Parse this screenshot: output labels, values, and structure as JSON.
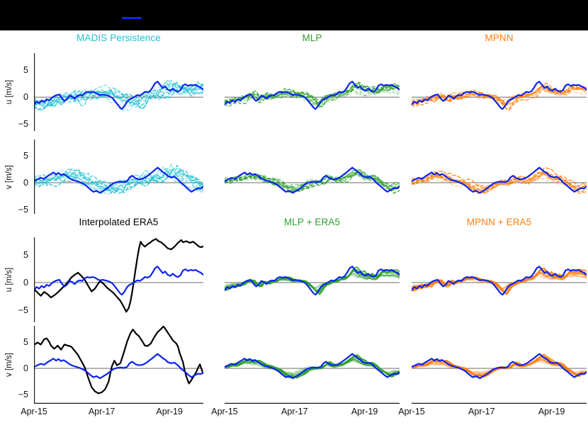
{
  "header": {
    "bar_color": "#000000"
  },
  "legend": {
    "line_color": "#0b24ef"
  },
  "chart_data": {
    "type": "line",
    "grid": false,
    "description_titles": [
      "MADIS Persistence",
      "MLP",
      "MPNN",
      "Interpolated ERA5",
      "MLP + ERA5",
      "MPNN + ERA5"
    ],
    "x_ticks": {
      "labels": [
        "Apr-15",
        "Apr-17",
        "Apr-19"
      ],
      "fractions": [
        0,
        0.4,
        0.8
      ]
    },
    "y_ticks": [
      5,
      0,
      -5
    ],
    "y_tick_labels": [
      "5",
      "0",
      "−5"
    ],
    "rows": [
      {
        "ylabel": "u [m/s]",
        "ylim": [
          -6.3,
          8.2
        ]
      },
      {
        "ylabel": "v [m/s]",
        "ylim": [
          -5.8,
          8.0
        ]
      },
      {
        "ylabel": "u [m/s]",
        "ylim": [
          -7.2,
          8.2
        ]
      },
      {
        "ylabel": "v [m/s]",
        "ylim": [
          -6.8,
          8.2
        ]
      }
    ],
    "colors": {
      "observation": "#0b24ef",
      "era5": "#000000",
      "persistence": "#17becf",
      "mlp": "#2ca02c",
      "mpnn": "#ff7f0e",
      "zero_line": "#7d7d7d",
      "spine": "#1a1a1a",
      "title_persistence": "#22bfd3",
      "title_mlp": "#2ca02c",
      "title_mpnn": "#ff7f0e",
      "title_era5": "#000000"
    },
    "titles": [
      {
        "text": "MADIS Persistence",
        "color": "title_persistence",
        "block": 0,
        "col": 0
      },
      {
        "text": "MLP",
        "color": "title_mlp",
        "block": 0,
        "col": 1
      },
      {
        "text": "MPNN",
        "color": "title_mpnn",
        "block": 0,
        "col": 2
      },
      {
        "text": "Interpolated ERA5",
        "color": "title_era5",
        "block": 1,
        "col": 0
      },
      {
        "text": "MLP + ERA5",
        "color": "title_mlp",
        "block": 1,
        "col": 1
      },
      {
        "text": "MPNN + ERA5",
        "color": "title_mpnn",
        "block": 1,
        "col": 2
      }
    ],
    "series": {
      "obs_u": [
        [
          0,
          -1.4
        ],
        [
          0.015,
          -0.8
        ],
        [
          0.03,
          -1.1
        ],
        [
          0.045,
          -0.6
        ],
        [
          0.06,
          -0.9
        ],
        [
          0.075,
          -0.4
        ],
        [
          0.09,
          -0.6
        ],
        [
          0.105,
          -0.1
        ],
        [
          0.12,
          0.2
        ],
        [
          0.135,
          0.4
        ],
        [
          0.15,
          0.5
        ],
        [
          0.165,
          -0.2
        ],
        [
          0.18,
          -0.7
        ],
        [
          0.195,
          -0.4
        ],
        [
          0.21,
          0.3
        ],
        [
          0.225,
          0.1
        ],
        [
          0.24,
          -0.3
        ],
        [
          0.255,
          0.2
        ],
        [
          0.27,
          0.4
        ],
        [
          0.285,
          0.3
        ],
        [
          0.3,
          0.8
        ],
        [
          0.315,
          1
        ],
        [
          0.33,
          0.9
        ],
        [
          0.345,
          1
        ],
        [
          0.36,
          0.9
        ],
        [
          0.375,
          0.6
        ],
        [
          0.39,
          0.4
        ],
        [
          0.405,
          0.5
        ],
        [
          0.42,
          0.4
        ],
        [
          0.435,
          0.3
        ],
        [
          0.45,
          0.1
        ],
        [
          0.465,
          -0.2
        ],
        [
          0.48,
          -0.8
        ],
        [
          0.495,
          -1.4
        ],
        [
          0.51,
          -2
        ],
        [
          0.52,
          -2.2
        ],
        [
          0.535,
          -1.6
        ],
        [
          0.55,
          -0.8
        ],
        [
          0.565,
          -0.4
        ],
        [
          0.58,
          -0.2
        ],
        [
          0.595,
          0.1
        ],
        [
          0.61,
          0.4
        ],
        [
          0.625,
          0.3
        ],
        [
          0.64,
          0.6
        ],
        [
          0.655,
          1
        ],
        [
          0.67,
          0.9
        ],
        [
          0.685,
          1.1
        ],
        [
          0.7,
          1.8
        ],
        [
          0.715,
          2.6
        ],
        [
          0.73,
          2.9
        ],
        [
          0.745,
          2.3
        ],
        [
          0.76,
          1.7
        ],
        [
          0.775,
          2
        ],
        [
          0.79,
          1.4
        ],
        [
          0.805,
          1.2
        ],
        [
          0.82,
          1.6
        ],
        [
          0.835,
          1.2
        ],
        [
          0.85,
          1
        ],
        [
          0.865,
          1.3
        ],
        [
          0.88,
          2.2
        ],
        [
          0.895,
          2.4
        ],
        [
          0.91,
          2.1
        ],
        [
          0.925,
          2.3
        ],
        [
          0.94,
          2.2
        ],
        [
          0.955,
          2.3
        ],
        [
          0.97,
          2
        ],
        [
          0.985,
          1.8
        ],
        [
          1,
          1.4
        ]
      ],
      "obs_v": [
        [
          0,
          0.3
        ],
        [
          0.02,
          0.6
        ],
        [
          0.04,
          0.9
        ],
        [
          0.06,
          0.7
        ],
        [
          0.08,
          1.2
        ],
        [
          0.1,
          1.6
        ],
        [
          0.115,
          1.9
        ],
        [
          0.13,
          1.5
        ],
        [
          0.145,
          1.8
        ],
        [
          0.16,
          1.4
        ],
        [
          0.175,
          1.6
        ],
        [
          0.19,
          1.3
        ],
        [
          0.21,
          0.8
        ],
        [
          0.23,
          0.5
        ],
        [
          0.25,
          0.3
        ],
        [
          0.27,
          0.1
        ],
        [
          0.29,
          -0.2
        ],
        [
          0.31,
          -0.6
        ],
        [
          0.33,
          -1.2
        ],
        [
          0.35,
          -1.7
        ],
        [
          0.37,
          -1.5
        ],
        [
          0.39,
          -1.9
        ],
        [
          0.41,
          -1.5
        ],
        [
          0.43,
          -1.1
        ],
        [
          0.45,
          -0.6
        ],
        [
          0.47,
          -0.1
        ],
        [
          0.49,
          0.1
        ],
        [
          0.51,
          0.2
        ],
        [
          0.53,
          0.1
        ],
        [
          0.55,
          0.3
        ],
        [
          0.565,
          1
        ],
        [
          0.58,
          1.3
        ],
        [
          0.6,
          0.8
        ],
        [
          0.62,
          0.6
        ],
        [
          0.64,
          0.7
        ],
        [
          0.66,
          1
        ],
        [
          0.68,
          1.5
        ],
        [
          0.7,
          2
        ],
        [
          0.715,
          2.4
        ],
        [
          0.73,
          2.8
        ],
        [
          0.745,
          2.4
        ],
        [
          0.76,
          2
        ],
        [
          0.775,
          1.7
        ],
        [
          0.79,
          1.2
        ],
        [
          0.81,
          1
        ],
        [
          0.83,
          1.1
        ],
        [
          0.85,
          0.6
        ],
        [
          0.87,
          -0.1
        ],
        [
          0.89,
          -0.6
        ],
        [
          0.91,
          -1.2
        ],
        [
          0.93,
          -1.7
        ],
        [
          0.95,
          -1.3
        ],
        [
          0.97,
          -1
        ],
        [
          0.985,
          -1.1
        ],
        [
          1,
          -0.7
        ]
      ],
      "era5_u": [
        [
          0,
          -1.2
        ],
        [
          0.02,
          -1.8
        ],
        [
          0.04,
          -2.4
        ],
        [
          0.06,
          -1.7
        ],
        [
          0.08,
          -2.1
        ],
        [
          0.1,
          -2.7
        ],
        [
          0.12,
          -2.3
        ],
        [
          0.14,
          -1.8
        ],
        [
          0.16,
          -1.2
        ],
        [
          0.18,
          -0.6
        ],
        [
          0.2,
          0.1
        ],
        [
          0.22,
          0.9
        ],
        [
          0.24,
          1.4
        ],
        [
          0.26,
          1.8
        ],
        [
          0.28,
          1.2
        ],
        [
          0.3,
          0.5
        ],
        [
          0.32,
          -0.6
        ],
        [
          0.34,
          -1.6
        ],
        [
          0.36,
          -1.1
        ],
        [
          0.375,
          -0.4
        ],
        [
          0.39,
          0.3
        ],
        [
          0.41,
          -0.2
        ],
        [
          0.43,
          -0.9
        ],
        [
          0.45,
          -1.4
        ],
        [
          0.47,
          -1.9
        ],
        [
          0.49,
          -2.6
        ],
        [
          0.51,
          -3.3
        ],
        [
          0.53,
          -4.4
        ],
        [
          0.545,
          -5.3
        ],
        [
          0.56,
          -4.6
        ],
        [
          0.57,
          -3.4
        ],
        [
          0.58,
          -1.7
        ],
        [
          0.59,
          0.3
        ],
        [
          0.6,
          2.4
        ],
        [
          0.61,
          4.4
        ],
        [
          0.62,
          6.2
        ],
        [
          0.63,
          7.4
        ],
        [
          0.64,
          6.9
        ],
        [
          0.655,
          6.5
        ],
        [
          0.67,
          6.9
        ],
        [
          0.685,
          7.2
        ],
        [
          0.7,
          7.6
        ],
        [
          0.72,
          7.9
        ],
        [
          0.735,
          7.5
        ],
        [
          0.75,
          7.3
        ],
        [
          0.77,
          6.8
        ],
        [
          0.79,
          6.2
        ],
        [
          0.81,
          6
        ],
        [
          0.83,
          6.5
        ],
        [
          0.85,
          7.2
        ],
        [
          0.87,
          7.7
        ],
        [
          0.88,
          7.3
        ],
        [
          0.9,
          7.5
        ],
        [
          0.92,
          7.2
        ],
        [
          0.94,
          7.4
        ],
        [
          0.96,
          6.9
        ],
        [
          0.975,
          6.5
        ],
        [
          0.99,
          6.4
        ],
        [
          1,
          6.6
        ]
      ],
      "era5_v": [
        [
          0,
          4.5
        ],
        [
          0.02,
          5
        ],
        [
          0.04,
          4.6
        ],
        [
          0.06,
          5.6
        ],
        [
          0.075,
          5.8
        ],
        [
          0.09,
          5.1
        ],
        [
          0.1,
          4.4
        ],
        [
          0.12,
          3.8
        ],
        [
          0.14,
          4.4
        ],
        [
          0.16,
          3.6
        ],
        [
          0.18,
          4.6
        ],
        [
          0.2,
          4.4
        ],
        [
          0.22,
          4.2
        ],
        [
          0.24,
          3.4
        ],
        [
          0.26,
          2.6
        ],
        [
          0.28,
          1.4
        ],
        [
          0.3,
          0.2
        ],
        [
          0.32,
          -1.8
        ],
        [
          0.34,
          -3.6
        ],
        [
          0.36,
          -4.4
        ],
        [
          0.38,
          -4.8
        ],
        [
          0.4,
          -4.6
        ],
        [
          0.42,
          -4
        ],
        [
          0.44,
          -2.6
        ],
        [
          0.46,
          0.4
        ],
        [
          0.475,
          1.5
        ],
        [
          0.49,
          0.6
        ],
        [
          0.51,
          1
        ],
        [
          0.53,
          3
        ],
        [
          0.55,
          5.2
        ],
        [
          0.57,
          6.8
        ],
        [
          0.585,
          7.5
        ],
        [
          0.6,
          6.8
        ],
        [
          0.62,
          6.2
        ],
        [
          0.64,
          5.2
        ],
        [
          0.655,
          4.4
        ],
        [
          0.67,
          4.3
        ],
        [
          0.69,
          4.8
        ],
        [
          0.71,
          6
        ],
        [
          0.73,
          7
        ],
        [
          0.75,
          7.6
        ],
        [
          0.765,
          8.1
        ],
        [
          0.78,
          7.4
        ],
        [
          0.8,
          6.4
        ],
        [
          0.82,
          5.4
        ],
        [
          0.84,
          4.8
        ],
        [
          0.85,
          4.2
        ],
        [
          0.86,
          3
        ],
        [
          0.88,
          1.2
        ],
        [
          0.89,
          -0.4
        ],
        [
          0.9,
          -1.6
        ],
        [
          0.915,
          -2.9
        ],
        [
          0.93,
          -2.2
        ],
        [
          0.945,
          -1.4
        ],
        [
          0.96,
          -0.6
        ],
        [
          0.97,
          0.2
        ],
        [
          0.98,
          0.8
        ],
        [
          0.99,
          -0.2
        ],
        [
          1,
          -1
        ]
      ]
    },
    "panels": [
      {
        "id": "persistence-u",
        "row": 0,
        "col": 0,
        "obs": "obs_u",
        "members": {
          "base": "obs_u",
          "count": 10,
          "color": "persistence",
          "dashed": true,
          "damp": 0.8,
          "dampStep": 0.01,
          "lag": 0.02,
          "lagStep": 0.012,
          "walk": 1.6,
          "decay": 0.75,
          "alpha": [
            0.3,
            0.8
          ],
          "seed": 7
        }
      },
      {
        "id": "mlp-u",
        "row": 0,
        "col": 1,
        "obs": "obs_u",
        "members": {
          "base": "obs_u",
          "count": 9,
          "color": "mlp",
          "dashed": true,
          "damp": 0.55,
          "dampStep": 0.04,
          "lag": 0.004,
          "lagStep": 0.004,
          "walk": 0.9,
          "decay": 0.75,
          "alpha": [
            0.35,
            0.85
          ],
          "seed": 8
        }
      },
      {
        "id": "mpnn-u",
        "row": 0,
        "col": 2,
        "obs": "obs_u",
        "members": {
          "base": "obs_u",
          "count": 9,
          "color": "mpnn",
          "dashed": true,
          "damp": 0.55,
          "dampStep": 0.04,
          "lag": 0.004,
          "lagStep": 0.004,
          "walk": 0.9,
          "decay": 0.75,
          "alpha": [
            0.35,
            0.85
          ],
          "seed": 9
        }
      },
      {
        "id": "persistence-v",
        "row": 1,
        "col": 0,
        "obs": "obs_v",
        "members": {
          "base": "obs_v",
          "count": 10,
          "color": "persistence",
          "dashed": true,
          "damp": 0.8,
          "dampStep": 0.01,
          "lag": 0.02,
          "lagStep": 0.012,
          "walk": 1.6,
          "decay": 0.75,
          "alpha": [
            0.3,
            0.8
          ],
          "seed": 17
        }
      },
      {
        "id": "mlp-v",
        "row": 1,
        "col": 1,
        "obs": "obs_v",
        "members": {
          "base": "obs_v",
          "count": 9,
          "color": "mlp",
          "dashed": true,
          "damp": 0.55,
          "dampStep": 0.04,
          "lag": 0.004,
          "lagStep": 0.004,
          "walk": 0.9,
          "decay": 0.75,
          "alpha": [
            0.35,
            0.85
          ],
          "seed": 18
        }
      },
      {
        "id": "mpnn-v",
        "row": 1,
        "col": 2,
        "obs": "obs_v",
        "members": {
          "base": "obs_v",
          "count": 9,
          "color": "mpnn",
          "dashed": true,
          "damp": 0.55,
          "dampStep": 0.04,
          "lag": 0.004,
          "lagStep": 0.004,
          "walk": 0.9,
          "decay": 0.75,
          "alpha": [
            0.35,
            0.85
          ],
          "seed": 19
        }
      },
      {
        "id": "era5-u",
        "row": 2,
        "col": 0,
        "obs": "obs_u",
        "extra": "era5_u"
      },
      {
        "id": "mlp-era5-u",
        "row": 2,
        "col": 1,
        "obs": "obs_u",
        "members": {
          "base": "obs_u",
          "count": 9,
          "color": "mlp",
          "dashed": false,
          "damp": 0.5,
          "dampStep": 0.06,
          "lag": 0,
          "lagStep": 0.003,
          "walk": 0.35,
          "decay": 0.85,
          "alpha": [
            0.3,
            0.9
          ],
          "seed": 28
        }
      },
      {
        "id": "mpnn-era5-u",
        "row": 2,
        "col": 2,
        "obs": "obs_u",
        "members": {
          "base": "obs_u",
          "count": 9,
          "color": "mpnn",
          "dashed": false,
          "damp": 0.5,
          "dampStep": 0.06,
          "lag": 0,
          "lagStep": 0.003,
          "walk": 0.35,
          "decay": 0.85,
          "alpha": [
            0.3,
            0.9
          ],
          "seed": 29
        }
      },
      {
        "id": "era5-v",
        "row": 3,
        "col": 0,
        "obs": "obs_v",
        "extra": "era5_v"
      },
      {
        "id": "mlp-era5-v",
        "row": 3,
        "col": 1,
        "obs": "obs_v",
        "members": {
          "base": "obs_v",
          "count": 9,
          "color": "mlp",
          "dashed": false,
          "damp": 0.5,
          "dampStep": 0.06,
          "lag": 0,
          "lagStep": 0.003,
          "walk": 0.35,
          "decay": 0.85,
          "alpha": [
            0.3,
            0.9
          ],
          "seed": 38
        }
      },
      {
        "id": "mpnn-era5-v",
        "row": 3,
        "col": 2,
        "obs": "obs_v",
        "members": {
          "base": "obs_v",
          "count": 9,
          "color": "mpnn",
          "dashed": false,
          "damp": 0.5,
          "dampStep": 0.06,
          "lag": 0,
          "lagStep": 0.003,
          "walk": 0.35,
          "decay": 0.85,
          "alpha": [
            0.3,
            0.9
          ],
          "seed": 39
        }
      }
    ]
  }
}
